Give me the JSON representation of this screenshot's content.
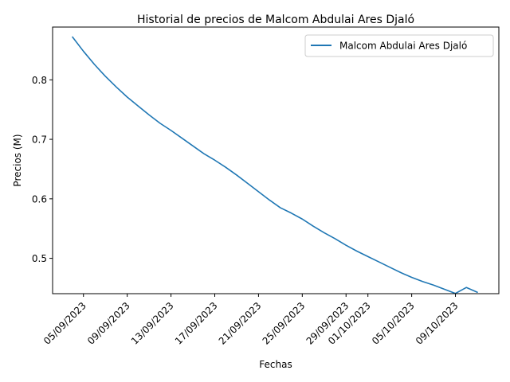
{
  "chart_data": {
    "type": "line",
    "title": "Historial de precios de Malcom Abdulai Ares Djaló",
    "xlabel": "Fechas",
    "ylabel": "Precios (M)",
    "x_ticks": [
      "05/09/2023",
      "09/09/2023",
      "13/09/2023",
      "17/09/2023",
      "21/09/2023",
      "25/09/2023",
      "29/09/2023",
      "01/10/2023",
      "05/10/2023",
      "09/10/2023"
    ],
    "x": [
      "04/09/2023",
      "05/09/2023",
      "06/09/2023",
      "07/09/2023",
      "08/09/2023",
      "09/09/2023",
      "10/09/2023",
      "11/09/2023",
      "12/09/2023",
      "13/09/2023",
      "14/09/2023",
      "15/09/2023",
      "16/09/2023",
      "17/09/2023",
      "18/09/2023",
      "19/09/2023",
      "20/09/2023",
      "21/09/2023",
      "22/09/2023",
      "23/09/2023",
      "24/09/2023",
      "25/09/2023",
      "26/09/2023",
      "27/09/2023",
      "28/09/2023",
      "29/09/2023",
      "30/09/2023",
      "01/10/2023",
      "02/10/2023",
      "03/10/2023",
      "04/10/2023",
      "05/10/2023",
      "06/10/2023",
      "07/10/2023",
      "08/10/2023",
      "09/10/2023",
      "10/10/2023",
      "11/10/2023"
    ],
    "series": [
      {
        "name": "Malcom Abdulai Ares Djaló",
        "color": "#1f77b4",
        "values": [
          0.872,
          0.848,
          0.826,
          0.806,
          0.788,
          0.771,
          0.756,
          0.741,
          0.727,
          0.715,
          0.702,
          0.689,
          0.676,
          0.665,
          0.653,
          0.64,
          0.626,
          0.612,
          0.598,
          0.585,
          0.576,
          0.566,
          0.554,
          0.543,
          0.533,
          0.522,
          0.512,
          0.503,
          0.494,
          0.485,
          0.476,
          0.468,
          0.461,
          0.455,
          0.448,
          0.441,
          0.451,
          0.443
        ]
      }
    ],
    "y_ticks": [
      "0.5",
      "0.6",
      "0.7",
      "0.8"
    ],
    "ylim": [
      0.4406,
      0.8887
    ],
    "legend_position": "upper right",
    "grid": false
  }
}
